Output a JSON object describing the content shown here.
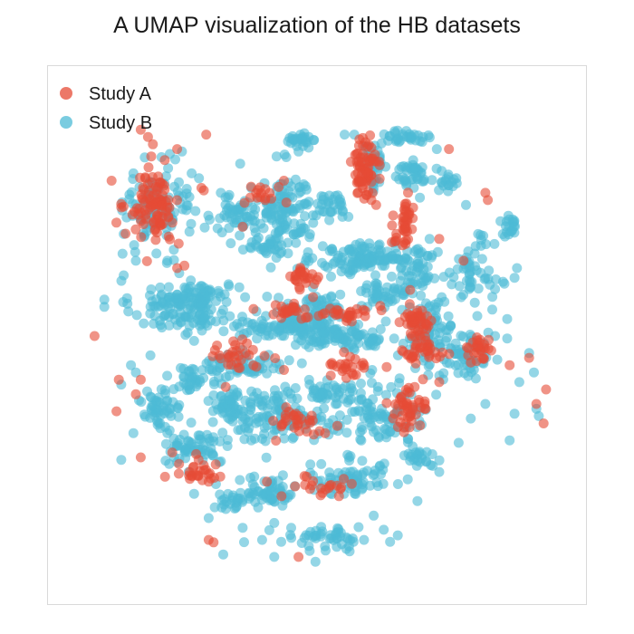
{
  "chart_data": {
    "type": "scatter",
    "title": "A UMAP visualization of the HB datasets",
    "xlabel": "",
    "ylabel": "",
    "xlim": [
      -10,
      10
    ],
    "ylim": [
      -10,
      10
    ],
    "grid": false,
    "axes_visible": false,
    "legend": {
      "placement": "top-left"
    },
    "series": [
      {
        "name": "Study A",
        "color": "#E64B35",
        "clusters": [
          [
            -6.8,
            5.4,
            0.9,
            1.3,
            90
          ],
          [
            1.9,
            6.9,
            0.5,
            1.2,
            70
          ],
          [
            3.6,
            4.5,
            0.4,
            0.9,
            40
          ],
          [
            4.1,
            0.6,
            0.6,
            0.6,
            40
          ],
          [
            -0.5,
            2.4,
            0.5,
            0.4,
            25
          ],
          [
            4.4,
            -0.6,
            0.8,
            0.5,
            35
          ],
          [
            6.7,
            -0.5,
            0.4,
            0.5,
            25
          ],
          [
            3.6,
            -3.0,
            0.7,
            0.8,
            45
          ],
          [
            -3.5,
            -0.8,
            1.0,
            0.5,
            30
          ],
          [
            -1.0,
            -3.5,
            1.0,
            0.6,
            30
          ],
          [
            -4.8,
            -5.5,
            0.8,
            0.6,
            25
          ],
          [
            1.4,
            -1.2,
            1.0,
            0.4,
            25
          ],
          [
            0.5,
            -6.2,
            1.0,
            0.4,
            20
          ],
          [
            -2.4,
            5.8,
            0.6,
            0.4,
            15
          ],
          [
            -1.2,
            1.1,
            0.8,
            0.3,
            20
          ],
          [
            1.0,
            0.9,
            1.3,
            0.3,
            30
          ]
        ],
        "points": [
          [
            -7.3,
            8.5
          ],
          [
            -7.0,
            8.2
          ],
          [
            -4.6,
            8.3
          ],
          [
            -6.8,
            7.9
          ],
          [
            2.2,
            5.6
          ],
          [
            2.4,
            5.4
          ],
          [
            -8.5,
            6.4
          ],
          [
            -7.4,
            5.0
          ],
          [
            -8.1,
            5.3
          ],
          [
            -4.8,
            6.1
          ],
          [
            -9.2,
            0.0
          ],
          [
            8.7,
            -0.9
          ],
          [
            7.9,
            -1.2
          ],
          [
            5.0,
            -1.9
          ],
          [
            6.2,
            -0.5
          ],
          [
            5.4,
            7.7
          ],
          [
            -6.4,
            5.8
          ],
          [
            -5.8,
            2.8
          ],
          [
            -8.3,
            -3.1
          ],
          [
            -4.7,
            6.0
          ],
          [
            -6.0,
            -4.8
          ],
          [
            -7.3,
            -1.8
          ],
          [
            -0.2,
            1.6
          ],
          [
            -5.8,
            7.7
          ],
          [
            -5.5,
            2.9
          ],
          [
            -7.3,
            -5.0
          ],
          [
            -6.3,
            -5.8
          ],
          [
            -4.5,
            -8.4
          ],
          [
            -1.5,
            -6.6
          ],
          [
            -4.5,
            -6.0
          ],
          [
            -4.3,
            -8.5
          ],
          [
            -3.8,
            -2.1
          ],
          [
            -1.4,
            -1.4
          ],
          [
            6.0,
            3.1
          ],
          [
            7.0,
            5.6
          ],
          [
            6.9,
            5.9
          ],
          [
            0.8,
            -3.7
          ],
          [
            -1.3,
            5.5
          ],
          [
            0.2,
            0.9
          ],
          [
            -2.1,
            -6.0
          ],
          [
            5.0,
            4.0
          ],
          [
            -0.9,
            2.3
          ],
          [
            3.8,
            1.9
          ],
          [
            -3.1,
            4.5
          ],
          [
            -0.8,
            -9.1
          ],
          [
            4.4,
            -2.8
          ],
          [
            9.3,
            -3.6
          ],
          [
            9.0,
            -2.8
          ],
          [
            9.4,
            -2.2
          ],
          [
            -8.2,
            -1.8
          ],
          [
            -7.5,
            -2.4
          ],
          [
            -1.4,
            6.4
          ]
        ]
      },
      {
        "name": "Study B",
        "color": "#4DBBD5",
        "clusters": [
          [
            -5.7,
            1.2,
            1.8,
            1.0,
            120
          ],
          [
            -1.3,
            5.1,
            1.0,
            1.6,
            110
          ],
          [
            2.0,
            3.2,
            1.8,
            0.6,
            120
          ],
          [
            -1.0,
            0.4,
            2.6,
            0.4,
            110
          ],
          [
            1.0,
            -0.1,
            2.2,
            0.4,
            90
          ],
          [
            -1.9,
            -3.2,
            2.0,
            1.0,
            120
          ],
          [
            -3.0,
            -1.2,
            1.5,
            0.5,
            60
          ],
          [
            2.4,
            -3.1,
            2.0,
            1.2,
            110
          ],
          [
            4.6,
            0.2,
            1.0,
            1.4,
            70
          ],
          [
            6.1,
            -0.9,
            0.9,
            1.0,
            60
          ],
          [
            6.4,
            2.6,
            0.8,
            1.2,
            50
          ],
          [
            3.9,
            6.6,
            0.7,
            0.6,
            40
          ],
          [
            -6.6,
            5.4,
            1.2,
            1.6,
            90
          ],
          [
            -2.0,
            -6.4,
            1.0,
            0.5,
            60
          ],
          [
            1.4,
            -5.9,
            1.6,
            0.7,
            70
          ],
          [
            -5.0,
            -4.6,
            1.2,
            0.6,
            60
          ],
          [
            -6.5,
            -3.1,
            0.8,
            0.8,
            50
          ],
          [
            -5.3,
            -1.8,
            0.6,
            0.5,
            30
          ],
          [
            4.2,
            2.8,
            0.9,
            0.9,
            50
          ],
          [
            0.6,
            -8.3,
            1.6,
            0.4,
            50
          ],
          [
            -3.4,
            4.9,
            1.4,
            0.8,
            60
          ],
          [
            -4.8,
            1.7,
            0.9,
            0.4,
            40
          ],
          [
            0.0,
            1.1,
            1.4,
            0.6,
            60
          ],
          [
            2.7,
            1.8,
            1.0,
            0.5,
            40
          ],
          [
            -3.8,
            -2.9,
            0.7,
            0.9,
            40
          ],
          [
            0.2,
            -2.3,
            0.6,
            0.5,
            30
          ],
          [
            4.1,
            -5.0,
            0.7,
            0.4,
            25
          ],
          [
            3.6,
            8.2,
            0.9,
            0.3,
            30
          ],
          [
            -0.7,
            8.0,
            0.6,
            0.3,
            25
          ],
          [
            2.3,
            6.9,
            0.5,
            1.0,
            40
          ],
          [
            7.9,
            4.5,
            0.3,
            0.6,
            20
          ],
          [
            5.4,
            6.3,
            0.4,
            0.3,
            15
          ],
          [
            -3.7,
            -6.8,
            0.6,
            0.4,
            20
          ],
          [
            -2.4,
            3.6,
            0.8,
            0.3,
            25
          ],
          [
            0.5,
            5.3,
            0.9,
            0.5,
            35
          ]
        ],
        "points": [
          [
            -3.2,
            7.1
          ],
          [
            -2.2,
            6.3
          ],
          [
            -0.9,
            8.0
          ],
          [
            -0.5,
            8.0
          ],
          [
            1.1,
            8.3
          ],
          [
            1.5,
            8.3
          ],
          [
            2.0,
            7.8
          ],
          [
            3.3,
            8.1
          ],
          [
            4.3,
            8.0
          ],
          [
            4.9,
            7.7
          ],
          [
            -4.9,
            6.5
          ],
          [
            -5.2,
            6.7
          ],
          [
            -5.6,
            7.6
          ],
          [
            -6.1,
            7.5
          ],
          [
            -7.3,
            4.8
          ],
          [
            -8.8,
            1.5
          ],
          [
            -8.8,
            1.2
          ],
          [
            -8.0,
            2.5
          ],
          [
            -7.5,
            3.1
          ],
          [
            -6.2,
            3.1
          ],
          [
            8.1,
            2.4
          ],
          [
            8.2,
            2.8
          ],
          [
            7.8,
            0.7
          ],
          [
            7.3,
            0.0
          ],
          [
            7.8,
            -0.1
          ],
          [
            8.7,
            -0.7
          ],
          [
            8.9,
            -1.5
          ],
          [
            8.3,
            -1.9
          ],
          [
            5.7,
            6.5
          ],
          [
            6.6,
            4.2
          ],
          [
            -7.7,
            -1.2
          ],
          [
            -7.5,
            -1.5
          ],
          [
            -8.1,
            -2.0
          ],
          [
            -6.9,
            -2.5
          ],
          [
            -6.2,
            -4.0
          ],
          [
            -5.8,
            -5.2
          ],
          [
            -4.5,
            -7.5
          ],
          [
            -4.2,
            -6.1
          ],
          [
            -3.1,
            -7.9
          ],
          [
            -2.3,
            -8.4
          ],
          [
            -1.8,
            -7.7
          ],
          [
            -3.9,
            -9.0
          ],
          [
            1.9,
            -8.4
          ],
          [
            2.3,
            -7.4
          ],
          [
            3.3,
            -6.1
          ],
          [
            4.1,
            -6.8
          ],
          [
            5.0,
            -5.6
          ],
          [
            5.8,
            -4.4
          ],
          [
            6.3,
            -3.4
          ],
          [
            6.9,
            -2.8
          ],
          [
            8.1,
            -3.2
          ],
          [
            9.1,
            -3.3
          ],
          [
            9.0,
            -3.0
          ],
          [
            7.9,
            -4.3
          ],
          [
            -7.6,
            -4.0
          ],
          [
            -8.1,
            -5.1
          ],
          [
            -5.1,
            -6.5
          ],
          [
            -2.0,
            -8.0
          ],
          [
            -1.8,
            -9.1
          ],
          [
            -0.1,
            -9.3
          ],
          [
            -7.6,
            6.7
          ],
          [
            -6.8,
            4.6
          ],
          [
            -3.0,
            1.6
          ],
          [
            -0.8,
            7.6
          ],
          [
            -1.7,
            7.4
          ],
          [
            -8.0,
            4.2
          ],
          [
            -6.5,
            2.0
          ],
          [
            -6.9,
            -0.8
          ],
          [
            -5.1,
            -0.2
          ],
          [
            -4.2,
            0.6
          ],
          [
            5.9,
            1.6
          ],
          [
            5.1,
            1.6
          ],
          [
            4.6,
            4.0
          ],
          [
            4.2,
            5.7
          ],
          [
            0.2,
            3.7
          ],
          [
            -1.7,
            4.6
          ],
          [
            -4.0,
            5.9
          ],
          [
            -0.2,
            2.0
          ],
          [
            2.8,
            0.6
          ],
          [
            3.3,
            -0.8
          ],
          [
            6.7,
            2.6
          ],
          [
            6.5,
            3.7
          ],
          [
            6.1,
            5.4
          ],
          [
            5.1,
            6.8
          ]
        ]
      }
    ]
  }
}
